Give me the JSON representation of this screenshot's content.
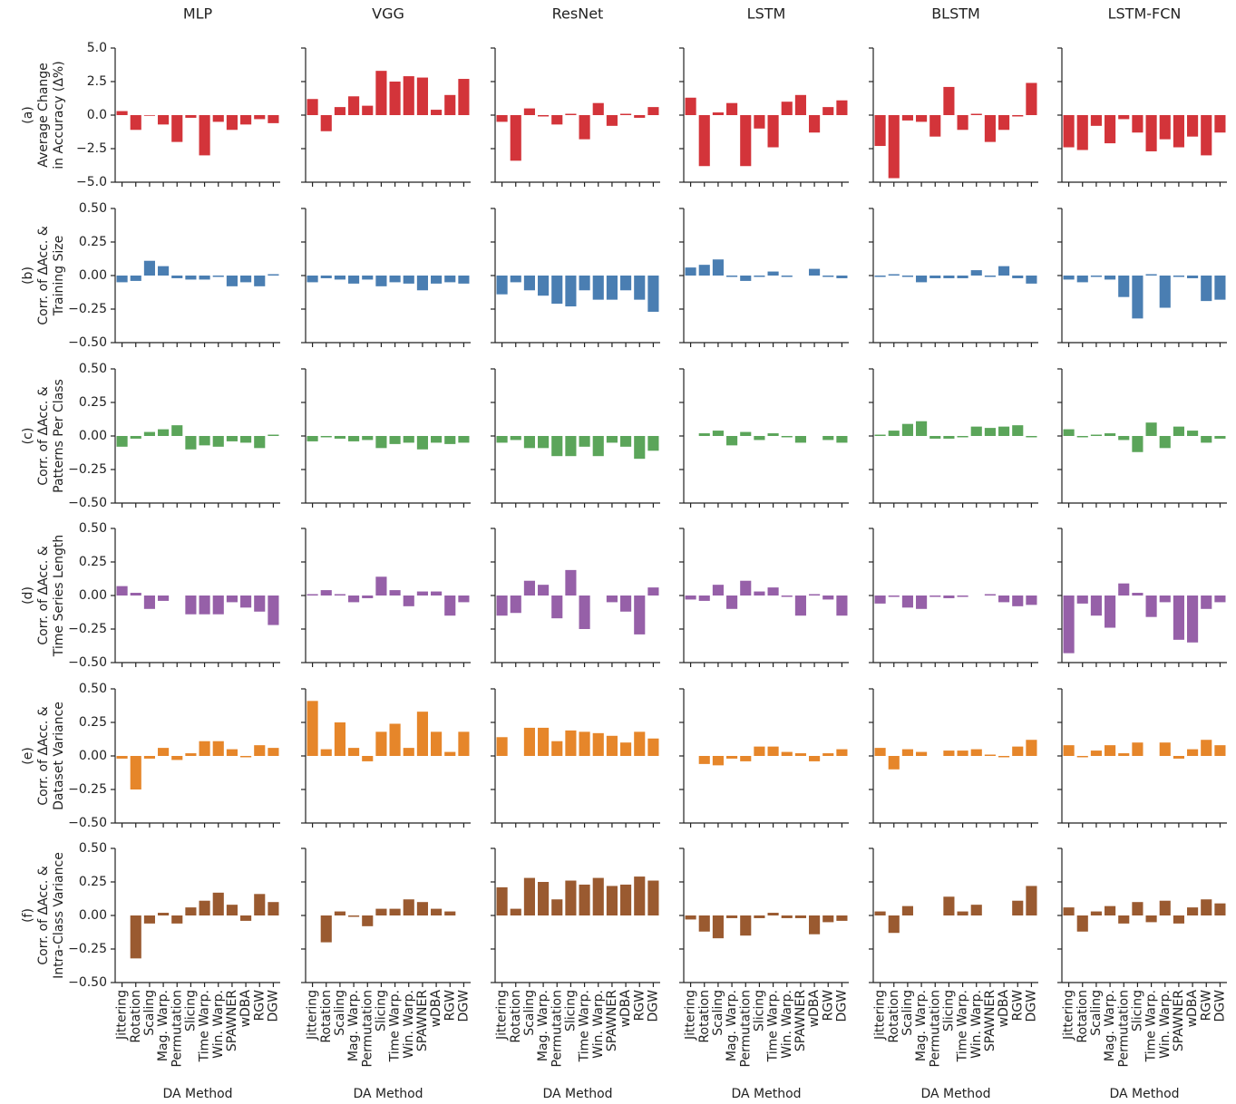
{
  "chart_data": {
    "type": "bar",
    "columns": [
      "MLP",
      "VGG",
      "ResNet",
      "LSTM",
      "BLSTM",
      "LSTM-FCN"
    ],
    "categories": [
      "Jittering",
      "Rotation",
      "Scaling",
      "Mag. Warp.",
      "Permutation",
      "Slicing",
      "Time Warp.",
      "Win. Warp.",
      "SPAWNER",
      "wDBA",
      "RGW",
      "DGW"
    ],
    "xlabel": "DA Method",
    "rows": [
      {
        "ylabel": [
          "(a)",
          "Average Change",
          "in Accuracy (Δ%)"
        ],
        "color": "#d3343a",
        "ylim": [
          -5,
          5
        ],
        "yticks": [
          {
            "value": -5,
            "label": "−5.0"
          },
          {
            "value": -2.5,
            "label": "−2.5"
          },
          {
            "value": 0,
            "label": "0.0"
          },
          {
            "value": 2.5,
            "label": "2.5"
          },
          {
            "value": 5,
            "label": "5.0"
          }
        ],
        "values": [
          [
            0.3,
            -1.1,
            -0.05,
            -0.7,
            -2.0,
            -0.2,
            -3.0,
            -0.5,
            -1.1,
            -0.7,
            -0.3,
            -0.6
          ],
          [
            1.2,
            -1.2,
            0.6,
            1.4,
            0.7,
            3.3,
            2.5,
            2.9,
            2.8,
            0.4,
            1.5,
            2.7
          ],
          [
            -0.5,
            -3.4,
            0.5,
            -0.1,
            -0.7,
            0.1,
            -1.8,
            0.9,
            -0.8,
            0.1,
            -0.2,
            0.6
          ],
          [
            1.3,
            -3.8,
            0.2,
            0.9,
            -3.8,
            -1.0,
            -2.4,
            1.0,
            1.5,
            -1.3,
            0.6,
            1.1
          ],
          [
            -2.3,
            -4.7,
            -0.4,
            -0.5,
            -1.6,
            2.1,
            -1.1,
            0.1,
            -2.0,
            -1.1,
            -0.1,
            2.4
          ],
          [
            -2.4,
            -2.6,
            -0.8,
            -2.1,
            -0.3,
            -1.3,
            -2.7,
            -1.8,
            -2.4,
            -1.6,
            -3.0,
            -1.3
          ]
        ]
      },
      {
        "ylabel": [
          "(b)",
          "Corr. of ΔAcc. &",
          "Training Size"
        ],
        "color": "#4a7eb2",
        "ylim": [
          -0.5,
          0.5
        ],
        "yticks": [
          {
            "value": -0.5,
            "label": "−0.50"
          },
          {
            "value": -0.25,
            "label": "−0.25"
          },
          {
            "value": 0,
            "label": "0.00"
          },
          {
            "value": 0.25,
            "label": "0.25"
          },
          {
            "value": 0.5,
            "label": "0.50"
          }
        ],
        "values": [
          [
            -0.05,
            -0.04,
            0.11,
            0.07,
            -0.02,
            -0.03,
            -0.03,
            -0.01,
            -0.08,
            -0.05,
            -0.08,
            0.01
          ],
          [
            -0.05,
            -0.02,
            -0.03,
            -0.06,
            -0.03,
            -0.08,
            -0.05,
            -0.06,
            -0.11,
            -0.06,
            -0.05,
            -0.06
          ],
          [
            -0.14,
            -0.05,
            -0.11,
            -0.15,
            -0.21,
            -0.23,
            -0.11,
            -0.18,
            -0.18,
            -0.11,
            -0.18,
            -0.27
          ],
          [
            0.06,
            0.08,
            0.12,
            -0.01,
            -0.04,
            -0.01,
            0.03,
            -0.01,
            0.0,
            0.05,
            -0.01,
            -0.02
          ],
          [
            -0.01,
            0.01,
            -0.01,
            -0.05,
            -0.02,
            -0.02,
            -0.02,
            0.04,
            -0.01,
            0.07,
            -0.02,
            -0.06
          ],
          [
            -0.03,
            -0.05,
            -0.01,
            -0.03,
            -0.16,
            -0.32,
            0.01,
            -0.24,
            -0.01,
            -0.02,
            -0.19,
            -0.18
          ]
        ]
      },
      {
        "ylabel": [
          "(c)",
          "Corr. of ΔAcc. &",
          "Patterns Per Class"
        ],
        "color": "#5ba55a",
        "ylim": [
          -0.5,
          0.5
        ],
        "yticks": [
          {
            "value": -0.5,
            "label": "−0.50"
          },
          {
            "value": -0.25,
            "label": "−0.25"
          },
          {
            "value": 0,
            "label": "0.00"
          },
          {
            "value": 0.25,
            "label": "0.25"
          },
          {
            "value": 0.5,
            "label": "0.50"
          }
        ],
        "values": [
          [
            -0.08,
            -0.02,
            0.03,
            0.05,
            0.08,
            -0.1,
            -0.07,
            -0.08,
            -0.04,
            -0.05,
            -0.09,
            0.01
          ],
          [
            -0.04,
            -0.01,
            -0.02,
            -0.04,
            -0.03,
            -0.09,
            -0.06,
            -0.05,
            -0.1,
            -0.05,
            -0.06,
            -0.05
          ],
          [
            -0.05,
            -0.03,
            -0.09,
            -0.09,
            -0.15,
            -0.15,
            -0.08,
            -0.15,
            -0.05,
            -0.08,
            -0.17,
            -0.11
          ],
          [
            0.0,
            0.02,
            0.04,
            -0.07,
            0.03,
            -0.03,
            0.02,
            -0.01,
            -0.05,
            0.0,
            -0.03,
            -0.05
          ],
          [
            0.01,
            0.04,
            0.09,
            0.11,
            -0.02,
            -0.02,
            -0.01,
            0.07,
            0.06,
            0.07,
            0.08,
            -0.01
          ],
          [
            0.05,
            -0.01,
            0.01,
            0.02,
            -0.03,
            -0.12,
            0.1,
            -0.09,
            0.07,
            0.04,
            -0.05,
            -0.02
          ]
        ]
      },
      {
        "ylabel": [
          "(d)",
          "Corr. of ΔAcc. &",
          "Time Series Length"
        ],
        "color": "#9660a8",
        "ylim": [
          -0.5,
          0.5
        ],
        "yticks": [
          {
            "value": -0.5,
            "label": "−0.50"
          },
          {
            "value": -0.25,
            "label": "−0.25"
          },
          {
            "value": 0,
            "label": "0.00"
          },
          {
            "value": 0.25,
            "label": "0.25"
          },
          {
            "value": 0.5,
            "label": "0.50"
          }
        ],
        "values": [
          [
            0.07,
            0.02,
            -0.1,
            -0.04,
            0.0,
            -0.14,
            -0.14,
            -0.14,
            -0.05,
            -0.09,
            -0.12,
            -0.22
          ],
          [
            0.01,
            0.04,
            0.01,
            -0.05,
            -0.02,
            0.14,
            0.04,
            -0.08,
            0.03,
            0.03,
            -0.15,
            -0.05
          ],
          [
            -0.15,
            -0.13,
            0.11,
            0.08,
            -0.17,
            0.19,
            -0.25,
            0.0,
            -0.05,
            -0.12,
            -0.29,
            0.06
          ],
          [
            -0.03,
            -0.04,
            0.08,
            -0.1,
            0.11,
            0.03,
            0.06,
            -0.01,
            -0.15,
            0.01,
            -0.03,
            -0.15
          ],
          [
            -0.06,
            -0.01,
            -0.09,
            -0.1,
            -0.01,
            -0.02,
            -0.01,
            0.0,
            0.01,
            -0.05,
            -0.08,
            -0.07
          ],
          [
            -0.43,
            -0.06,
            -0.15,
            -0.24,
            0.09,
            0.02,
            -0.16,
            -0.05,
            -0.33,
            -0.35,
            -0.1,
            -0.05
          ]
        ]
      },
      {
        "ylabel": [
          "(e)",
          "Corr. of ΔAcc. &",
          "Dataset Variance"
        ],
        "color": "#e6862a",
        "ylim": [
          -0.5,
          0.5
        ],
        "yticks": [
          {
            "value": -0.5,
            "label": "−0.50"
          },
          {
            "value": -0.25,
            "label": "−0.25"
          },
          {
            "value": 0,
            "label": "0.00"
          },
          {
            "value": 0.25,
            "label": "0.25"
          },
          {
            "value": 0.5,
            "label": "0.50"
          }
        ],
        "values": [
          [
            -0.02,
            -0.25,
            -0.02,
            0.06,
            -0.03,
            0.02,
            0.11,
            0.11,
            0.05,
            -0.01,
            0.08,
            0.06
          ],
          [
            0.41,
            0.05,
            0.25,
            0.06,
            -0.04,
            0.18,
            0.24,
            0.06,
            0.33,
            0.18,
            0.03,
            0.18
          ],
          [
            0.14,
            0.0,
            0.21,
            0.21,
            0.11,
            0.19,
            0.18,
            0.17,
            0.15,
            0.1,
            0.18,
            0.13
          ],
          [
            0.0,
            -0.06,
            -0.07,
            -0.02,
            -0.04,
            0.07,
            0.07,
            0.03,
            0.02,
            -0.04,
            0.02,
            0.05
          ],
          [
            0.06,
            -0.1,
            0.05,
            0.03,
            0.0,
            0.04,
            0.04,
            0.05,
            0.01,
            -0.01,
            0.07,
            0.12
          ],
          [
            0.08,
            -0.01,
            0.04,
            0.08,
            0.02,
            0.1,
            0.0,
            0.1,
            -0.02,
            0.05,
            0.12,
            0.08
          ]
        ]
      },
      {
        "ylabel": [
          "(f)",
          "Corr. of ΔAcc. &",
          "Intra-Class Variance"
        ],
        "color": "#9a5a30",
        "ylim": [
          -0.5,
          0.5
        ],
        "yticks": [
          {
            "value": -0.5,
            "label": "−0.50"
          },
          {
            "value": -0.25,
            "label": "−0.25"
          },
          {
            "value": 0,
            "label": "0.00"
          },
          {
            "value": 0.25,
            "label": "0.25"
          },
          {
            "value": 0.5,
            "label": "0.50"
          }
        ],
        "values": [
          [
            0.0,
            -0.32,
            -0.06,
            0.02,
            -0.06,
            0.06,
            0.11,
            0.17,
            0.08,
            -0.04,
            0.16,
            0.1
          ],
          [
            0.0,
            -0.2,
            0.03,
            -0.01,
            -0.08,
            0.05,
            0.05,
            0.12,
            0.1,
            0.05,
            0.03,
            0.0
          ],
          [
            0.21,
            0.05,
            0.28,
            0.25,
            0.12,
            0.26,
            0.23,
            0.28,
            0.22,
            0.23,
            0.29,
            0.26
          ],
          [
            -0.03,
            -0.12,
            -0.17,
            -0.02,
            -0.15,
            -0.02,
            0.02,
            -0.02,
            -0.02,
            -0.14,
            -0.05,
            -0.04
          ],
          [
            0.03,
            -0.13,
            0.07,
            0.0,
            0.0,
            0.14,
            0.03,
            0.08,
            0.0,
            0.0,
            0.11,
            0.22
          ],
          [
            0.06,
            -0.12,
            0.03,
            0.07,
            -0.06,
            0.1,
            -0.05,
            0.11,
            -0.06,
            0.06,
            0.12,
            0.09
          ]
        ]
      }
    ]
  }
}
